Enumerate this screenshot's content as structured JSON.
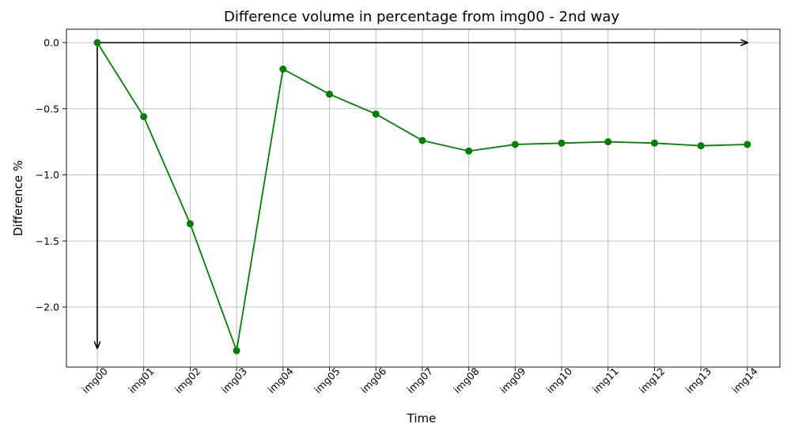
{
  "chart_data": {
    "type": "line",
    "title": "Difference volume in percentage from img00 - 2nd way",
    "xlabel": "Time",
    "ylabel": "Difference %",
    "categories": [
      "img00",
      "img01",
      "img02",
      "img03",
      "img04",
      "img05",
      "img06",
      "img07",
      "img08",
      "img09",
      "img10",
      "img11",
      "img12",
      "img13",
      "img14"
    ],
    "series": [
      {
        "values": [
          0.0,
          -0.56,
          -1.37,
          -2.33,
          -0.2,
          -0.39,
          -0.54,
          -0.74,
          -0.82,
          -0.77,
          -0.76,
          -0.75,
          -0.76,
          -0.78,
          -0.77
        ],
        "color": "#008000",
        "marker": "circle"
      }
    ],
    "yticks": [
      0.0,
      -0.5,
      -1.0,
      -1.5,
      -2.0
    ],
    "ytick_labels": [
      "0.0",
      "−0.5",
      "−1.0",
      "−1.5",
      "−2.0"
    ],
    "ylim": [
      -2.45,
      0.1
    ],
    "grid": true,
    "annotations": [
      {
        "type": "arrow",
        "from": [
          "img00",
          0.0
        ],
        "to": [
          "img14",
          0.0
        ],
        "color": "#000000"
      },
      {
        "type": "arrow",
        "from": [
          "img00",
          0.0
        ],
        "to": [
          "img00",
          -2.31
        ],
        "color": "#000000"
      }
    ]
  }
}
